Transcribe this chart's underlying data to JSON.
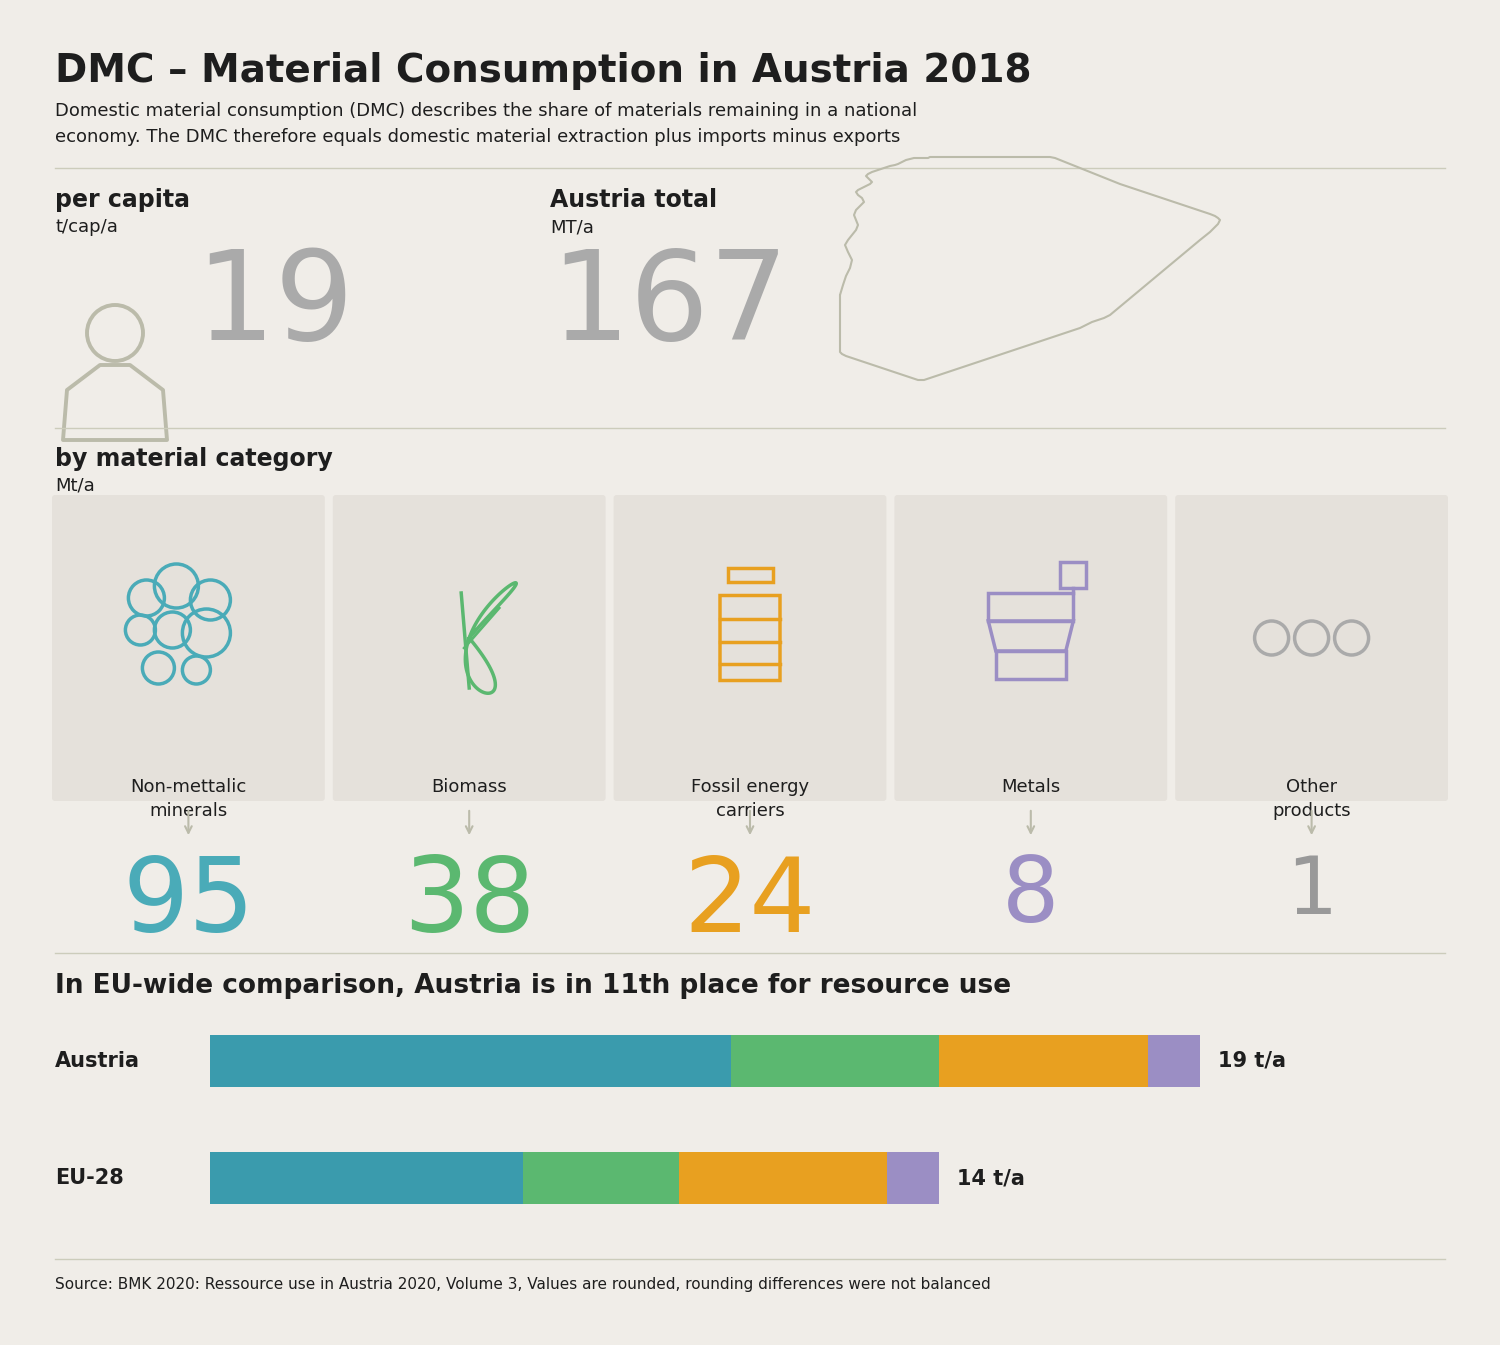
{
  "title": "DMC – Material Consumption in Austria 2018",
  "subtitle": "Domestic material consumption (DMC) describes the share of materials remaining in a national\neconomy. The DMC therefore equals domestic material extraction plus imports minus exports",
  "per_capita_label": "per capita",
  "per_capita_unit": "t/cap/a",
  "per_capita_value": "19",
  "austria_total_label": "Austria total",
  "austria_total_unit": "MT/a",
  "austria_total_value": "167",
  "material_category_label": "by material category",
  "material_category_unit": "Mt/a",
  "categories": [
    "Non-mettalic\nminerals",
    "Biomass",
    "Fossil energy\ncarriers",
    "Metals",
    "Other\nproducts"
  ],
  "category_values": [
    "95",
    "38",
    "24",
    "8",
    "1"
  ],
  "category_colors": [
    "#4AABB8",
    "#5BB870",
    "#E8A020",
    "#9B8EC4",
    "#999999"
  ],
  "eu_comparison_title": "In EU-wide comparison, Austria is in 11th place for resource use",
  "austria_bar": [
    10,
    4,
    4,
    1
  ],
  "eu28_bar": [
    6,
    3,
    4,
    1
  ],
  "austria_total_ta": "19 t/a",
  "eu28_total_ta": "14 t/a",
  "bar_colors": [
    "#3A9BAD",
    "#5BB870",
    "#E8A020",
    "#9B8EC4"
  ],
  "source_text": "Source: BMK 2020: Ressource use in Austria 2020, Volume 3, Values are rounded, rounding differences were not balanced",
  "bg_color": "#F0EDE8",
  "panel_color": "#E5E1DB",
  "text_color": "#1E1E1E",
  "light_gray": "#BBBBAA",
  "value_color": "#AAAAAA",
  "separator_color": "#CCCCBB"
}
